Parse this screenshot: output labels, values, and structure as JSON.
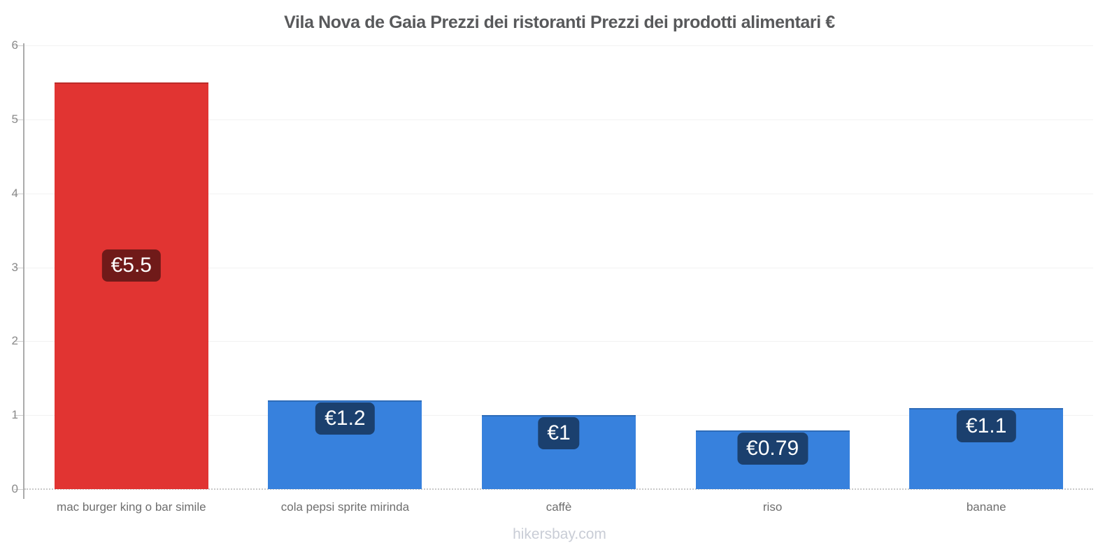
{
  "title": "Vila Nova de Gaia Prezzi dei ristoranti Prezzi dei prodotti alimentari €",
  "watermark": "hikersbay.com",
  "chart_data": {
    "type": "bar",
    "title": "Vila Nova de Gaia Prezzi dei ristoranti Prezzi dei prodotti alimentari €",
    "currency": "€",
    "categories": [
      "mac burger king o bar simile",
      "cola pepsi sprite mirinda",
      "caffè",
      "riso",
      "banane"
    ],
    "values": [
      5.5,
      1.2,
      1,
      0.79,
      1.1
    ],
    "data_labels": [
      "€5.5",
      "€1.2",
      "€1",
      "€0.79",
      "€1.1"
    ],
    "bar_colors": [
      "#e13432",
      "#3781dd",
      "#3781dd",
      "#3781dd",
      "#3781dd"
    ],
    "ylim": [
      0,
      6
    ],
    "yticks": [
      0,
      1,
      2,
      3,
      4,
      5,
      6
    ],
    "grid": true,
    "legend": false,
    "xlabel": "",
    "ylabel": ""
  },
  "colors": {
    "red_bar": "#e13432",
    "blue_bar": "#3781dd",
    "label_badge_bg": "rgba(0,0,0,0.5)",
    "label_text": "#ffffff",
    "title_text": "#58595b",
    "axis_line": "#ababab",
    "tick_text": "#8a8a8a",
    "category_text": "#6e6e6e",
    "gridline": "#f2f2f2",
    "watermark_text": "#c9cdd6"
  }
}
